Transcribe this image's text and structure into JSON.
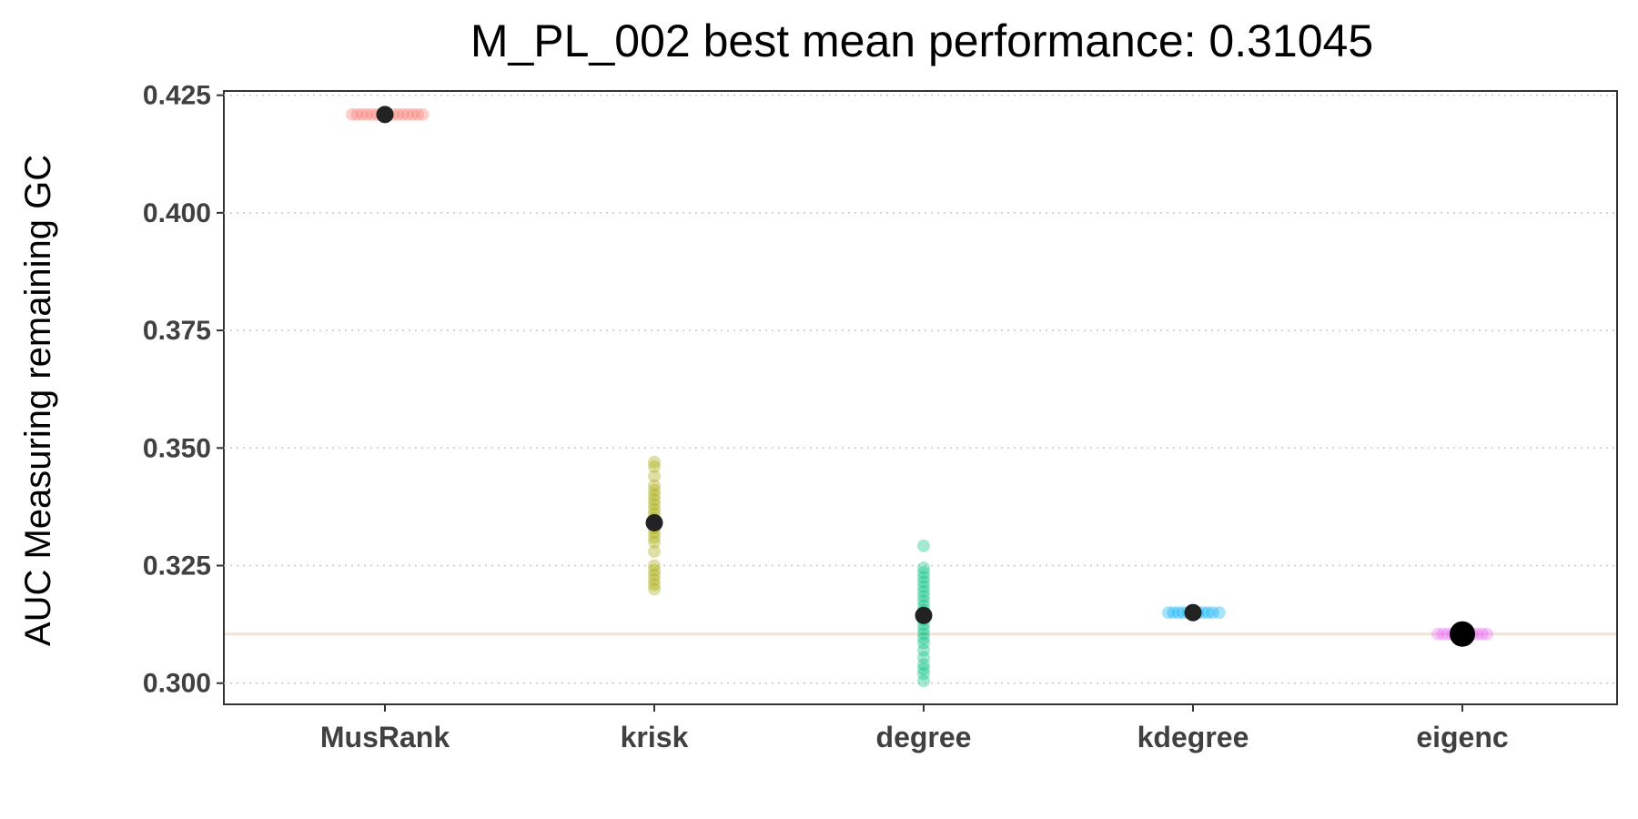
{
  "chart_data": {
    "type": "scatter",
    "title": "M_PL_002 best mean performance: 0.31045",
    "xlabel": "",
    "ylabel": "AUC Measuring remaining GC",
    "categories": [
      "MusRank",
      "krisk",
      "degree",
      "kdegree",
      "eigenc"
    ],
    "ylim": [
      0.2955,
      0.4259
    ],
    "yticks": [
      "0.300",
      "0.325",
      "0.350",
      "0.375",
      "0.400",
      "0.425"
    ],
    "grid": "horizontal dotted",
    "reference_line": {
      "value": 0.31045,
      "color": "#f3e2d3"
    },
    "series": [
      {
        "category": "MusRank",
        "color": "#f8766d",
        "mean": 0.4209,
        "points": [
          [
            -0.2,
            0.4209
          ],
          [
            -0.17,
            0.4209
          ],
          [
            -0.14,
            0.4209
          ],
          [
            -0.11,
            0.4209
          ],
          [
            -0.08,
            0.4209
          ],
          [
            -0.05,
            0.4209
          ],
          [
            -0.02,
            0.4209
          ],
          [
            0.02,
            0.4209
          ],
          [
            0.05,
            0.4209
          ],
          [
            0.08,
            0.4209
          ],
          [
            0.11,
            0.4209
          ],
          [
            0.14,
            0.4209
          ],
          [
            0.17,
            0.4209
          ],
          [
            0.2,
            0.4209
          ],
          [
            0.23,
            0.4209
          ]
        ]
      },
      {
        "category": "krisk",
        "color": "#a3a500",
        "mean": 0.3341,
        "points": [
          [
            0,
            0.347
          ],
          [
            0,
            0.346
          ],
          [
            0,
            0.344
          ],
          [
            0,
            0.342
          ],
          [
            0,
            0.341
          ],
          [
            0,
            0.34
          ],
          [
            0,
            0.339
          ],
          [
            0,
            0.338
          ],
          [
            0,
            0.337
          ],
          [
            0,
            0.336
          ],
          [
            0,
            0.335
          ],
          [
            0,
            0.334
          ],
          [
            0,
            0.333
          ],
          [
            0,
            0.332
          ],
          [
            0,
            0.331
          ],
          [
            0,
            0.33
          ],
          [
            0,
            0.328
          ],
          [
            0,
            0.325
          ],
          [
            0,
            0.324
          ],
          [
            0,
            0.323
          ],
          [
            0,
            0.322
          ],
          [
            0,
            0.321
          ],
          [
            0,
            0.32
          ]
        ]
      },
      {
        "category": "degree",
        "color": "#00bf7d",
        "mean": 0.3144,
        "points": [
          [
            0,
            0.3292
          ],
          [
            0,
            0.3245
          ],
          [
            0,
            0.3235
          ],
          [
            0,
            0.3225
          ],
          [
            0,
            0.3215
          ],
          [
            0,
            0.3205
          ],
          [
            0,
            0.3195
          ],
          [
            0,
            0.3185
          ],
          [
            0,
            0.3175
          ],
          [
            0,
            0.3165
          ],
          [
            0,
            0.3155
          ],
          [
            0,
            0.3145
          ],
          [
            0,
            0.3135
          ],
          [
            0,
            0.3125
          ],
          [
            0,
            0.3115
          ],
          [
            0,
            0.3105
          ],
          [
            0,
            0.3095
          ],
          [
            0,
            0.3085
          ],
          [
            0,
            0.307
          ],
          [
            0,
            0.3055
          ],
          [
            0,
            0.304
          ],
          [
            0,
            0.303
          ],
          [
            0,
            0.302
          ],
          [
            0,
            0.3005
          ]
        ]
      },
      {
        "category": "kdegree",
        "color": "#00b0f6",
        "mean": 0.315,
        "points": [
          [
            -0.15,
            0.315
          ],
          [
            -0.12,
            0.315
          ],
          [
            -0.09,
            0.315
          ],
          [
            -0.06,
            0.315
          ],
          [
            -0.03,
            0.315
          ],
          [
            0.0,
            0.315
          ],
          [
            0.03,
            0.315
          ],
          [
            0.06,
            0.315
          ],
          [
            0.09,
            0.315
          ],
          [
            0.12,
            0.315
          ],
          [
            0.16,
            0.315
          ]
        ]
      },
      {
        "category": "eigenc",
        "color": "#e76bf3",
        "mean": 0.31045,
        "points": [
          [
            -0.15,
            0.31045
          ],
          [
            -0.12,
            0.31045
          ],
          [
            -0.09,
            0.31045
          ],
          [
            -0.06,
            0.31045
          ],
          [
            -0.03,
            0.31045
          ],
          [
            0.0,
            0.31045
          ],
          [
            0.03,
            0.31045
          ],
          [
            0.06,
            0.31045
          ],
          [
            0.09,
            0.31045
          ],
          [
            0.12,
            0.31045
          ],
          [
            0.15,
            0.31045
          ]
        ]
      }
    ],
    "mean_marker_color": "#222222"
  }
}
